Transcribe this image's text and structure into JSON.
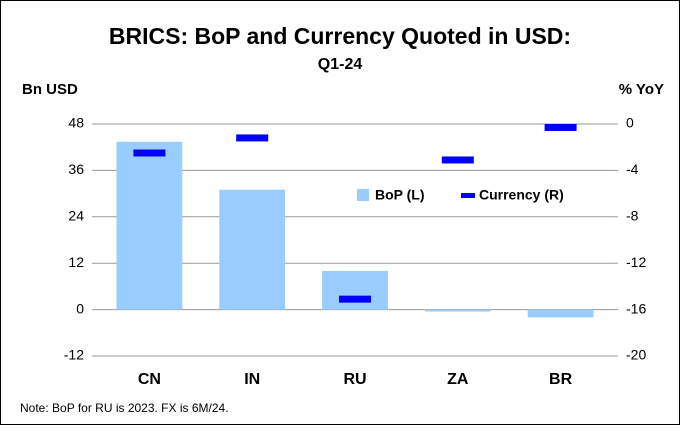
{
  "chart_data": {
    "type": "bar",
    "title": "BRICS: BoP and Currency Quoted in USD:",
    "subtitle": "Q1-24",
    "y_label": "Bn USD",
    "y2_label": "% YoY",
    "note": "Note: BoP for RU is 2023. FX is 6M/24.",
    "categories": [
      "CN",
      "IN",
      "RU",
      "ZA",
      "BR"
    ],
    "series": [
      {
        "name": "BoP (L)",
        "color": "#99ccff",
        "values": [
          43.4,
          31,
          10,
          -0.5,
          -2
        ]
      },
      {
        "name": "Currency (R)",
        "color": "#0000ff",
        "axis": "y2",
        "values": [
          -2.5,
          -1.2,
          -15.1,
          -3.1,
          -0.3
        ]
      }
    ],
    "ylim": [
      -12,
      48
    ],
    "yticks": [
      -12,
      0,
      12,
      24,
      36,
      48
    ],
    "y2lim": [
      -20,
      0
    ],
    "y2ticks": [
      -20,
      -16,
      -12,
      -8,
      -4,
      0
    ],
    "grid": true
  }
}
